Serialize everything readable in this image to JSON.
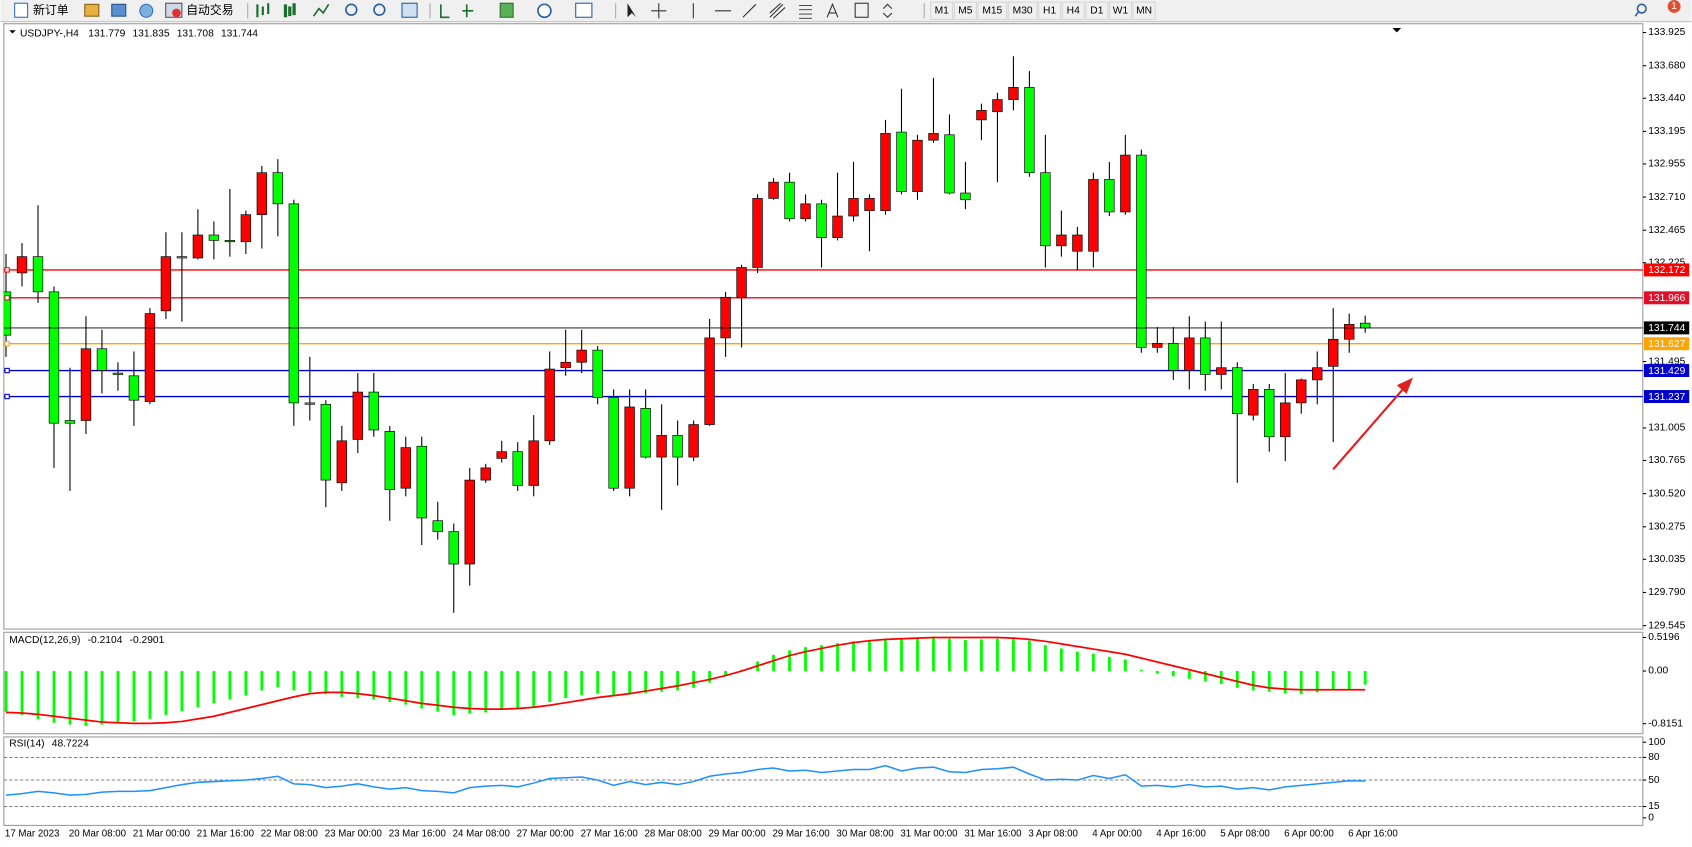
{
  "toolbar": {
    "new_order": "新订单",
    "auto_trading": "自动交易",
    "timeframes": [
      "M1",
      "M5",
      "M15",
      "M30",
      "H1",
      "H4",
      "D1",
      "W1",
      "MN"
    ],
    "notifications": 1
  },
  "chart_data": [
    {
      "type": "candlestick",
      "title": "USDJPY-,H4",
      "up_color": "#ff0000",
      "down_color": "#00ff00",
      "wick_color": "#000000",
      "categories": [
        "17 Mar 2023",
        null,
        null,
        null,
        "20 Mar 08:00",
        null,
        null,
        null,
        "21 Mar 00:00",
        null,
        null,
        null,
        "21 Mar 16:00",
        null,
        null,
        null,
        "22 Mar 08:00",
        null,
        null,
        null,
        "23 Mar 00:00",
        null,
        null,
        null,
        "23 Mar 16:00",
        null,
        null,
        null,
        "24 Mar 08:00",
        null,
        null,
        null,
        "27 Mar 00:00",
        null,
        null,
        null,
        "27 Mar 16:00",
        null,
        null,
        null,
        "28 Mar 08:00",
        null,
        null,
        null,
        "29 Mar 00:00",
        null,
        null,
        null,
        "29 Mar 16:00",
        null,
        null,
        null,
        "30 Mar 08:00",
        null,
        null,
        null,
        "31 Mar 00:00",
        null,
        null,
        null,
        "31 Mar 16:00",
        null,
        null,
        null,
        "3 Apr 08:00",
        null,
        null,
        null,
        "4 Apr 00:00",
        null,
        null,
        null,
        "4 Apr 16:00",
        null,
        null,
        null,
        "5 Apr 08:00",
        null,
        null,
        null,
        "6 Apr 00:00",
        null,
        null,
        null,
        "6 Apr 16:00",
        null
      ],
      "open": [
        132.01,
        132.15,
        132.27,
        132.01,
        131.06,
        131.06,
        131.59,
        131.41,
        131.39,
        131.2,
        131.87,
        132.27,
        132.26,
        132.43,
        132.39,
        132.38,
        132.58,
        132.89,
        132.66,
        131.19,
        131.18,
        130.6,
        130.92,
        131.27,
        130.98,
        130.56,
        130.87,
        130.32,
        130.24,
        130.0,
        130.62,
        130.78,
        130.83,
        130.58,
        130.91,
        131.45,
        131.49,
        131.58,
        131.23,
        130.56,
        131.15,
        130.79,
        130.95,
        130.79,
        131.03,
        131.67,
        131.97,
        132.19,
        132.7,
        132.82,
        132.55,
        132.66,
        132.41,
        132.57,
        132.61,
        132.61,
        133.19,
        132.75,
        133.13,
        133.17,
        132.74,
        133.28,
        133.34,
        133.43,
        133.52,
        132.89,
        132.35,
        132.31,
        132.31,
        132.84,
        132.6,
        133.02,
        131.6,
        131.63,
        131.43,
        131.67,
        131.4,
        131.45,
        131.1,
        131.29,
        130.94,
        131.19,
        131.36,
        131.46,
        131.66,
        131.779
      ],
      "high": [
        132.29,
        132.37,
        132.65,
        132.05,
        131.45,
        131.83,
        131.73,
        131.49,
        131.57,
        131.89,
        132.45,
        132.45,
        132.62,
        132.53,
        132.77,
        132.61,
        132.94,
        132.99,
        132.69,
        131.53,
        131.21,
        131.02,
        131.41,
        131.41,
        131.02,
        130.94,
        130.94,
        130.46,
        130.3,
        130.71,
        130.74,
        130.91,
        130.9,
        131.1,
        131.57,
        131.73,
        131.73,
        131.61,
        131.29,
        131.29,
        131.29,
        131.18,
        131.06,
        131.06,
        131.81,
        132.01,
        132.21,
        132.73,
        132.85,
        132.89,
        132.73,
        132.69,
        132.89,
        132.97,
        132.73,
        133.28,
        133.51,
        133.17,
        133.59,
        133.32,
        132.97,
        133.4,
        133.48,
        133.75,
        133.64,
        133.17,
        132.61,
        132.49,
        132.89,
        132.97,
        133.17,
        133.06,
        131.75,
        131.75,
        131.83,
        131.79,
        131.79,
        131.49,
        131.33,
        131.33,
        131.41,
        131.37,
        131.57,
        131.89,
        131.85,
        131.835
      ],
      "low": [
        131.53,
        132.05,
        131.93,
        130.71,
        130.54,
        130.96,
        131.26,
        131.28,
        131.02,
        131.18,
        131.81,
        131.79,
        132.25,
        132.25,
        132.27,
        132.29,
        132.33,
        132.42,
        131.02,
        131.06,
        130.42,
        130.54,
        130.82,
        130.94,
        130.32,
        130.5,
        130.14,
        130.18,
        129.64,
        129.84,
        130.6,
        130.75,
        130.54,
        130.5,
        130.88,
        131.39,
        131.41,
        131.18,
        130.54,
        130.5,
        130.78,
        130.4,
        130.58,
        130.76,
        131.02,
        131.53,
        131.6,
        132.15,
        132.69,
        132.53,
        132.53,
        132.19,
        132.39,
        132.53,
        132.31,
        132.58,
        132.73,
        132.69,
        133.11,
        132.73,
        132.62,
        133.13,
        132.82,
        133.35,
        132.86,
        132.19,
        132.27,
        132.17,
        132.19,
        132.57,
        132.58,
        131.56,
        131.56,
        131.36,
        131.29,
        131.28,
        131.29,
        130.6,
        131.06,
        130.83,
        130.76,
        131.11,
        131.18,
        130.9,
        131.56,
        131.708
      ],
      "close": [
        131.69,
        132.27,
        132.01,
        131.04,
        131.04,
        131.59,
        131.43,
        131.4,
        131.21,
        131.85,
        132.27,
        132.26,
        132.43,
        132.39,
        132.38,
        132.58,
        132.89,
        132.66,
        131.19,
        131.18,
        130.62,
        130.91,
        131.27,
        130.99,
        130.55,
        130.86,
        130.34,
        130.24,
        130.0,
        130.62,
        130.71,
        130.83,
        130.58,
        130.91,
        131.44,
        131.49,
        131.58,
        131.23,
        130.56,
        131.16,
        130.79,
        130.95,
        130.79,
        131.03,
        131.67,
        131.97,
        132.19,
        132.7,
        132.82,
        132.55,
        132.66,
        132.41,
        132.57,
        132.7,
        132.7,
        133.18,
        132.75,
        133.13,
        133.18,
        132.74,
        132.69,
        133.35,
        133.43,
        133.52,
        132.89,
        132.35,
        132.43,
        132.43,
        132.84,
        132.6,
        133.02,
        131.6,
        131.63,
        131.43,
        131.67,
        131.4,
        131.45,
        131.11,
        131.29,
        130.94,
        131.19,
        131.36,
        131.45,
        131.66,
        131.77,
        131.744
      ],
      "ylim": [
        129.52,
        133.99
      ],
      "yticks": [
        133.925,
        {
          "value": 133.68,
          "label": "133.680"
        },
        {
          "value": 133.44,
          "label": "133.440"
        },
        133.195,
        132.955,
        {
          "value": 132.71,
          "label": "132.710"
        },
        132.465,
        132.225,
        131.495,
        131.005,
        130.765,
        {
          "value": 130.52,
          "label": "130.520"
        },
        130.275,
        130.035,
        {
          "value": 129.79,
          "label": "129.790"
        },
        129.545
      ],
      "levels": [
        {
          "value": 132.172,
          "color": "#ff0000"
        },
        {
          "value": 131.966,
          "color": "#e0102a"
        },
        {
          "value": 131.627,
          "color": "#ffa500"
        },
        {
          "value": 131.429,
          "color": "#0000cd"
        },
        {
          "value": 131.237,
          "color": "#0000cd"
        }
      ],
      "price_line_color": "#000000"
    },
    {
      "type": "macd",
      "title": "MACD(12,26,9)",
      "histogram": {
        "color": "#00ff00",
        "values": [
          -0.63,
          -0.68,
          -0.75,
          -0.8,
          -0.83,
          -0.85,
          -0.83,
          -0.8,
          -0.78,
          -0.74,
          -0.68,
          -0.62,
          -0.56,
          -0.5,
          -0.44,
          -0.38,
          -0.3,
          -0.25,
          -0.3,
          -0.33,
          -0.36,
          -0.4,
          -0.42,
          -0.44,
          -0.48,
          -0.52,
          -0.58,
          -0.63,
          -0.68,
          -0.66,
          -0.64,
          -0.6,
          -0.58,
          -0.55,
          -0.48,
          -0.42,
          -0.37,
          -0.35,
          -0.38,
          -0.36,
          -0.34,
          -0.32,
          -0.3,
          -0.26,
          -0.18,
          -0.08,
          0.02,
          0.15,
          0.25,
          0.32,
          0.37,
          0.4,
          0.43,
          0.46,
          0.47,
          0.5,
          0.5,
          0.51,
          0.52,
          0.5,
          0.48,
          0.49,
          0.5,
          0.5,
          0.47,
          0.4,
          0.35,
          0.3,
          0.27,
          0.22,
          0.18,
          0.02,
          -0.04,
          -0.08,
          -0.12,
          -0.16,
          -0.2,
          -0.26,
          -0.3,
          -0.32,
          -0.35,
          -0.36,
          -0.33,
          -0.3,
          -0.28,
          -0.2104
        ]
      },
      "signal": {
        "color": "#ff0000",
        "values": [
          -0.64,
          -0.65,
          -0.67,
          -0.7,
          -0.73,
          -0.76,
          -0.79,
          -0.8,
          -0.81,
          -0.81,
          -0.8,
          -0.78,
          -0.74,
          -0.7,
          -0.64,
          -0.58,
          -0.52,
          -0.46,
          -0.4,
          -0.35,
          -0.33,
          -0.33,
          -0.35,
          -0.38,
          -0.42,
          -0.46,
          -0.5,
          -0.53,
          -0.56,
          -0.58,
          -0.59,
          -0.59,
          -0.58,
          -0.56,
          -0.53,
          -0.49,
          -0.45,
          -0.41,
          -0.38,
          -0.35,
          -0.31,
          -0.27,
          -0.23,
          -0.18,
          -0.13,
          -0.07,
          0.0,
          0.08,
          0.16,
          0.24,
          0.3,
          0.35,
          0.4,
          0.44,
          0.47,
          0.49,
          0.5,
          0.51,
          0.52,
          0.52,
          0.52,
          0.52,
          0.52,
          0.51,
          0.49,
          0.46,
          0.42,
          0.38,
          0.34,
          0.3,
          0.26,
          0.2,
          0.14,
          0.08,
          0.02,
          -0.04,
          -0.1,
          -0.16,
          -0.22,
          -0.26,
          -0.28,
          -0.29,
          -0.29,
          -0.29,
          -0.29,
          -0.2901
        ]
      },
      "ylim": [
        -0.97,
        0.6
      ],
      "yticks": [
        0.5196,
        {
          "value": 0,
          "label": "0.00"
        },
        -0.8151
      ]
    },
    {
      "type": "rsi",
      "title": "RSI(14)",
      "color": "#1e90ff",
      "values": [
        30,
        32,
        35,
        33,
        30,
        31,
        34,
        35,
        35,
        36,
        40,
        44,
        47,
        48,
        49,
        50,
        52,
        55,
        45,
        44,
        40,
        42,
        45,
        41,
        38,
        40,
        36,
        35,
        33,
        40,
        42,
        43,
        41,
        46,
        52,
        53,
        54,
        50,
        43,
        48,
        44,
        47,
        44,
        48,
        55,
        58,
        60,
        64,
        66,
        62,
        63,
        60,
        62,
        64,
        64,
        69,
        62,
        66,
        67,
        61,
        60,
        64,
        65,
        67,
        58,
        50,
        51,
        50,
        56,
        52,
        57,
        42,
        43,
        41,
        44,
        41,
        42,
        38,
        40,
        37,
        41,
        43,
        45,
        47,
        49,
        48.7224
      ],
      "ylim": [
        -10,
        107
      ],
      "yticks": [
        100,
        80,
        50,
        15,
        0
      ],
      "levels": [
        80,
        50,
        15
      ]
    }
  ]
}
